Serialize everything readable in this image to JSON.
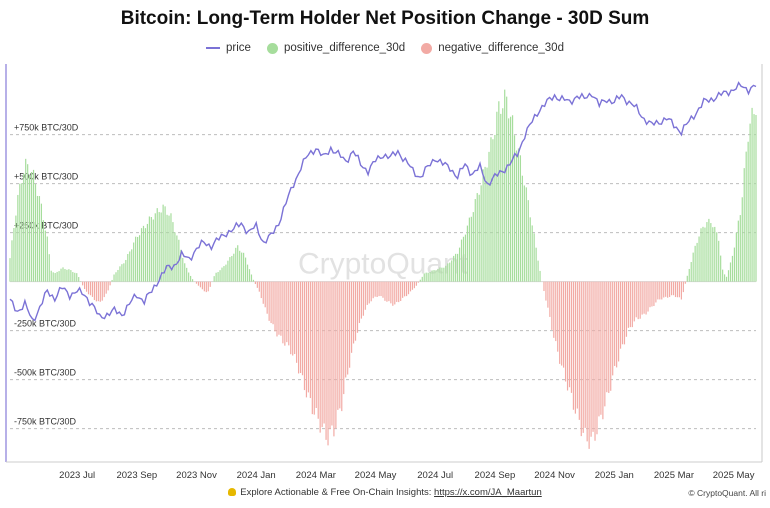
{
  "chart_data": {
    "type": "bar+line",
    "title": "Bitcoin: Long-Term Holder Net Position Change - 30D Sum",
    "watermark": "CryptoQuant",
    "legend": [
      {
        "key": "price",
        "label": "price",
        "color": "#7b72d6",
        "shape": "line"
      },
      {
        "key": "pos",
        "label": "positive_difference_30d",
        "color": "#a6dd9c",
        "shape": "dot"
      },
      {
        "key": "neg",
        "label": "negative_difference_30d",
        "color": "#f2aaa4",
        "shape": "dot"
      }
    ],
    "y_ticks": [
      {
        "value": 750,
        "label": "+750k BTC/30D"
      },
      {
        "value": 500,
        "label": "+500k BTC/30D"
      },
      {
        "value": 250,
        "label": "+250k BTC/30D"
      },
      {
        "value": -250,
        "label": "-250k BTC/30D"
      },
      {
        "value": -500,
        "label": "-500k BTC/30D"
      },
      {
        "value": -750,
        "label": "-750k BTC/30D"
      }
    ],
    "ylim": [
      -920,
      1100
    ],
    "x_ticks": [
      {
        "t": 0.09,
        "label": "2023 Jul"
      },
      {
        "t": 0.17,
        "label": "2023 Sep"
      },
      {
        "t": 0.25,
        "label": "2023 Nov"
      },
      {
        "t": 0.33,
        "label": "2024 Jan"
      },
      {
        "t": 0.41,
        "label": "2024 Mar"
      },
      {
        "t": 0.49,
        "label": "2024 May"
      },
      {
        "t": 0.57,
        "label": "2024 Jul"
      },
      {
        "t": 0.65,
        "label": "2024 Sep"
      },
      {
        "t": 0.73,
        "label": "2024 Nov"
      },
      {
        "t": 0.81,
        "label": "2025 Jan"
      },
      {
        "t": 0.89,
        "label": "2025 Mar"
      },
      {
        "t": 0.97,
        "label": "2025 May"
      }
    ],
    "net_position_change_30d": [
      [
        0.0,
        120
      ],
      [
        0.01,
        420
      ],
      [
        0.02,
        600
      ],
      [
        0.03,
        560
      ],
      [
        0.04,
        420
      ],
      [
        0.05,
        220
      ],
      [
        0.055,
        60
      ],
      [
        0.06,
        40
      ],
      [
        0.07,
        70
      ],
      [
        0.08,
        60
      ],
      [
        0.09,
        40
      ],
      [
        0.1,
        -40
      ],
      [
        0.11,
        -80
      ],
      [
        0.12,
        -110
      ],
      [
        0.13,
        -60
      ],
      [
        0.14,
        40
      ],
      [
        0.155,
        110
      ],
      [
        0.17,
        230
      ],
      [
        0.19,
        330
      ],
      [
        0.205,
        380
      ],
      [
        0.215,
        340
      ],
      [
        0.225,
        220
      ],
      [
        0.235,
        80
      ],
      [
        0.245,
        10
      ],
      [
        0.255,
        -30
      ],
      [
        0.265,
        -60
      ],
      [
        0.275,
        40
      ],
      [
        0.285,
        70
      ],
      [
        0.295,
        120
      ],
      [
        0.305,
        180
      ],
      [
        0.315,
        130
      ],
      [
        0.325,
        20
      ],
      [
        0.335,
        -60
      ],
      [
        0.345,
        -170
      ],
      [
        0.355,
        -250
      ],
      [
        0.365,
        -300
      ],
      [
        0.375,
        -340
      ],
      [
        0.385,
        -420
      ],
      [
        0.395,
        -540
      ],
      [
        0.405,
        -640
      ],
      [
        0.415,
        -720
      ],
      [
        0.425,
        -800
      ],
      [
        0.435,
        -750
      ],
      [
        0.445,
        -620
      ],
      [
        0.455,
        -420
      ],
      [
        0.465,
        -260
      ],
      [
        0.475,
        -150
      ],
      [
        0.485,
        -90
      ],
      [
        0.495,
        -70
      ],
      [
        0.505,
        -100
      ],
      [
        0.515,
        -120
      ],
      [
        0.525,
        -90
      ],
      [
        0.535,
        -60
      ],
      [
        0.545,
        -20
      ],
      [
        0.555,
        40
      ],
      [
        0.57,
        60
      ],
      [
        0.585,
        80
      ],
      [
        0.6,
        150
      ],
      [
        0.615,
        300
      ],
      [
        0.63,
        480
      ],
      [
        0.645,
        700
      ],
      [
        0.655,
        880
      ],
      [
        0.665,
        940
      ],
      [
        0.675,
        780
      ],
      [
        0.685,
        600
      ],
      [
        0.695,
        400
      ],
      [
        0.705,
        180
      ],
      [
        0.712,
        20
      ],
      [
        0.72,
        -120
      ],
      [
        0.73,
        -300
      ],
      [
        0.74,
        -440
      ],
      [
        0.75,
        -560
      ],
      [
        0.76,
        -680
      ],
      [
        0.77,
        -790
      ],
      [
        0.78,
        -820
      ],
      [
        0.79,
        -720
      ],
      [
        0.8,
        -600
      ],
      [
        0.81,
        -460
      ],
      [
        0.82,
        -340
      ],
      [
        0.83,
        -240
      ],
      [
        0.84,
        -190
      ],
      [
        0.85,
        -170
      ],
      [
        0.86,
        -130
      ],
      [
        0.87,
        -90
      ],
      [
        0.88,
        -80
      ],
      [
        0.89,
        -70
      ],
      [
        0.9,
        -90
      ],
      [
        0.91,
        60
      ],
      [
        0.92,
        200
      ],
      [
        0.93,
        290
      ],
      [
        0.94,
        310
      ],
      [
        0.95,
        220
      ],
      [
        0.955,
        60
      ],
      [
        0.96,
        20
      ],
      [
        0.965,
        80
      ],
      [
        0.97,
        160
      ],
      [
        0.98,
        380
      ],
      [
        0.99,
        780
      ],
      [
        1.0,
        900
      ]
    ],
    "price_series": [
      [
        0.0,
        0.34
      ],
      [
        0.01,
        0.31
      ],
      [
        0.02,
        0.33
      ],
      [
        0.03,
        0.28
      ],
      [
        0.04,
        0.32
      ],
      [
        0.05,
        0.37
      ],
      [
        0.06,
        0.35
      ],
      [
        0.07,
        0.38
      ],
      [
        0.08,
        0.36
      ],
      [
        0.09,
        0.37
      ],
      [
        0.1,
        0.36
      ],
      [
        0.11,
        0.33
      ],
      [
        0.12,
        0.29
      ],
      [
        0.13,
        0.3
      ],
      [
        0.14,
        0.31
      ],
      [
        0.15,
        0.3
      ],
      [
        0.16,
        0.33
      ],
      [
        0.17,
        0.36
      ],
      [
        0.18,
        0.34
      ],
      [
        0.19,
        0.37
      ],
      [
        0.2,
        0.41
      ],
      [
        0.21,
        0.44
      ],
      [
        0.22,
        0.45
      ],
      [
        0.23,
        0.48
      ],
      [
        0.24,
        0.47
      ],
      [
        0.25,
        0.5
      ],
      [
        0.26,
        0.52
      ],
      [
        0.27,
        0.51
      ],
      [
        0.28,
        0.53
      ],
      [
        0.29,
        0.55
      ],
      [
        0.3,
        0.56
      ],
      [
        0.31,
        0.58
      ],
      [
        0.32,
        0.55
      ],
      [
        0.33,
        0.57
      ],
      [
        0.34,
        0.52
      ],
      [
        0.35,
        0.54
      ],
      [
        0.36,
        0.58
      ],
      [
        0.37,
        0.64
      ],
      [
        0.38,
        0.7
      ],
      [
        0.39,
        0.75
      ],
      [
        0.4,
        0.79
      ],
      [
        0.41,
        0.81
      ],
      [
        0.42,
        0.78
      ],
      [
        0.43,
        0.81
      ],
      [
        0.44,
        0.79
      ],
      [
        0.45,
        0.77
      ],
      [
        0.46,
        0.8
      ],
      [
        0.47,
        0.76
      ],
      [
        0.48,
        0.74
      ],
      [
        0.49,
        0.77
      ],
      [
        0.5,
        0.79
      ],
      [
        0.51,
        0.78
      ],
      [
        0.52,
        0.8
      ],
      [
        0.53,
        0.77
      ],
      [
        0.54,
        0.74
      ],
      [
        0.55,
        0.72
      ],
      [
        0.56,
        0.75
      ],
      [
        0.57,
        0.78
      ],
      [
        0.58,
        0.76
      ],
      [
        0.59,
        0.75
      ],
      [
        0.6,
        0.72
      ],
      [
        0.61,
        0.76
      ],
      [
        0.62,
        0.73
      ],
      [
        0.63,
        0.75
      ],
      [
        0.64,
        0.7
      ],
      [
        0.65,
        0.72
      ],
      [
        0.66,
        0.74
      ],
      [
        0.67,
        0.76
      ],
      [
        0.68,
        0.79
      ],
      [
        0.69,
        0.85
      ],
      [
        0.7,
        0.89
      ],
      [
        0.71,
        0.93
      ],
      [
        0.72,
        0.95
      ],
      [
        0.73,
        0.97
      ],
      [
        0.74,
        0.96
      ],
      [
        0.75,
        0.95
      ],
      [
        0.76,
        0.97
      ],
      [
        0.77,
        0.96
      ],
      [
        0.78,
        0.98
      ],
      [
        0.79,
        0.94
      ],
      [
        0.8,
        0.96
      ],
      [
        0.81,
        0.95
      ],
      [
        0.82,
        0.97
      ],
      [
        0.83,
        0.95
      ],
      [
        0.84,
        0.93
      ],
      [
        0.85,
        0.9
      ],
      [
        0.86,
        0.88
      ],
      [
        0.87,
        0.89
      ],
      [
        0.88,
        0.9
      ],
      [
        0.89,
        0.88
      ],
      [
        0.9,
        0.86
      ],
      [
        0.91,
        0.89
      ],
      [
        0.92,
        0.92
      ],
      [
        0.93,
        0.95
      ],
      [
        0.94,
        0.96
      ],
      [
        0.95,
        0.97
      ],
      [
        0.96,
        0.98
      ],
      [
        0.97,
        0.99
      ],
      [
        0.98,
        1.0
      ],
      [
        0.99,
        0.99
      ],
      [
        1.0,
        1.0
      ]
    ]
  },
  "footer": {
    "text": "Explore Actionable & Free On-Chain Insights: ",
    "link": "https://x.com/JA_Maartun",
    "copyright": "© CryptoQuant. All ri"
  }
}
